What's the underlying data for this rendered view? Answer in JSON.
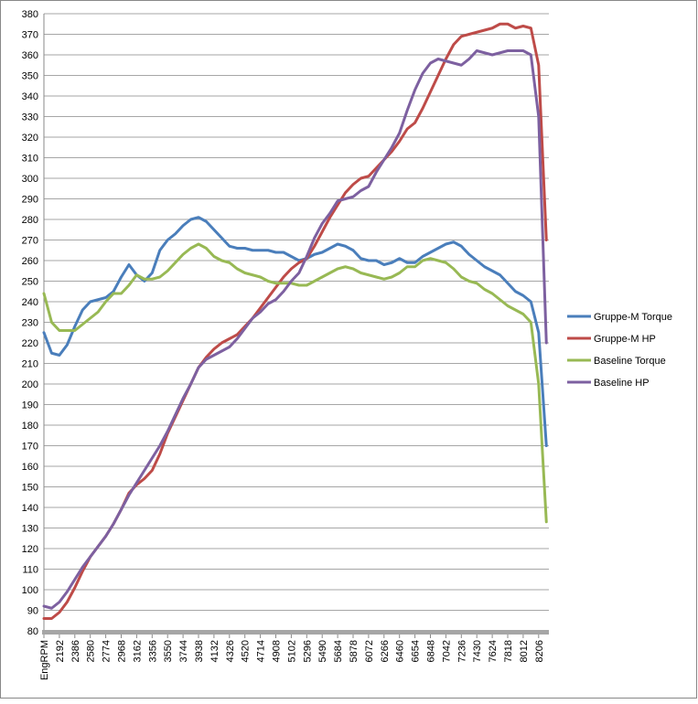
{
  "chart_data": {
    "type": "line",
    "categories": [
      "EngRPM",
      null,
      "2192",
      null,
      "2386",
      null,
      "2580",
      null,
      "2774",
      null,
      "2968",
      null,
      "3162",
      null,
      "3356",
      null,
      "3550",
      null,
      "3744",
      null,
      "3938",
      null,
      "4132",
      null,
      "4326",
      null,
      "4520",
      null,
      "4714",
      null,
      "4908",
      null,
      "5102",
      null,
      "5296",
      null,
      "5490",
      null,
      "5684",
      null,
      "5878",
      null,
      "6072",
      null,
      "6266",
      null,
      "6460",
      null,
      "6654",
      null,
      "6848",
      null,
      "7042",
      null,
      "7236",
      null,
      "7430",
      null,
      "7624",
      null,
      "7818",
      null,
      "8012",
      null,
      "8206",
      null
    ],
    "series": [
      {
        "name": "Gruppe-M Torque",
        "color": "#4a7ebb",
        "values": [
          225,
          215,
          214,
          219,
          228,
          236,
          240,
          241,
          242,
          245,
          252,
          258,
          253,
          250,
          254,
          265,
          270,
          273,
          277,
          280,
          281,
          279,
          275,
          271,
          267,
          266,
          266,
          265,
          265,
          265,
          264,
          264,
          262,
          260,
          261,
          263,
          264,
          266,
          268,
          267,
          265,
          261,
          260,
          260,
          258,
          259,
          261,
          259,
          259,
          262,
          264,
          266,
          268,
          269,
          267,
          263,
          260,
          257,
          255,
          253,
          249,
          245,
          243,
          240,
          225,
          170
        ]
      },
      {
        "name": "Gruppe-M HP",
        "color": "#be4b48",
        "values": [
          86,
          86,
          89,
          94,
          101,
          109,
          116,
          121,
          126,
          132,
          139,
          147,
          151,
          154,
          158,
          166,
          176,
          184,
          192,
          200,
          208,
          213,
          217,
          220,
          222,
          224,
          228,
          232,
          237,
          242,
          247,
          252,
          256,
          259,
          261,
          267,
          274,
          281,
          287,
          293,
          297,
          300,
          301,
          305,
          309,
          313,
          318,
          324,
          327,
          334,
          342,
          350,
          358,
          365,
          369,
          370,
          371,
          372,
          373,
          375,
          375,
          373,
          374,
          373,
          355,
          270
        ]
      },
      {
        "name": "Baseline Torque",
        "color": "#98b954",
        "values": [
          244,
          230,
          226,
          226,
          226,
          229,
          232,
          235,
          240,
          244,
          244,
          248,
          253,
          251,
          251,
          252,
          255,
          259,
          263,
          266,
          268,
          266,
          262,
          260,
          259,
          256,
          254,
          253,
          252,
          250,
          249,
          249,
          249,
          248,
          248,
          250,
          252,
          254,
          256,
          257,
          256,
          254,
          253,
          252,
          251,
          252,
          254,
          257,
          257,
          260,
          261,
          260,
          259,
          256,
          252,
          250,
          249,
          246,
          244,
          241,
          238,
          236,
          234,
          230,
          200,
          133
        ]
      },
      {
        "name": "Baseline HP",
        "color": "#7d60a0",
        "values": [
          92,
          91,
          94,
          99,
          105,
          111,
          116,
          121,
          126,
          132,
          139,
          146,
          152,
          158,
          164,
          170,
          177,
          185,
          193,
          200,
          208,
          212,
          214,
          216,
          218,
          222,
          227,
          232,
          235,
          239,
          241,
          245,
          250,
          254,
          262,
          271,
          278,
          283,
          289,
          290,
          291,
          294,
          296,
          303,
          309,
          315,
          322,
          333,
          343,
          351,
          356,
          358,
          357,
          356,
          355,
          358,
          362,
          361,
          360,
          361,
          362,
          362,
          362,
          360,
          330,
          220
        ]
      }
    ],
    "ylim": [
      80,
      380
    ],
    "yticks": [
      80,
      90,
      100,
      110,
      120,
      130,
      140,
      150,
      160,
      170,
      180,
      190,
      200,
      210,
      220,
      230,
      240,
      250,
      260,
      270,
      280,
      290,
      300,
      310,
      320,
      330,
      340,
      350,
      360,
      370,
      380
    ],
    "grid": true,
    "legend": "right"
  }
}
